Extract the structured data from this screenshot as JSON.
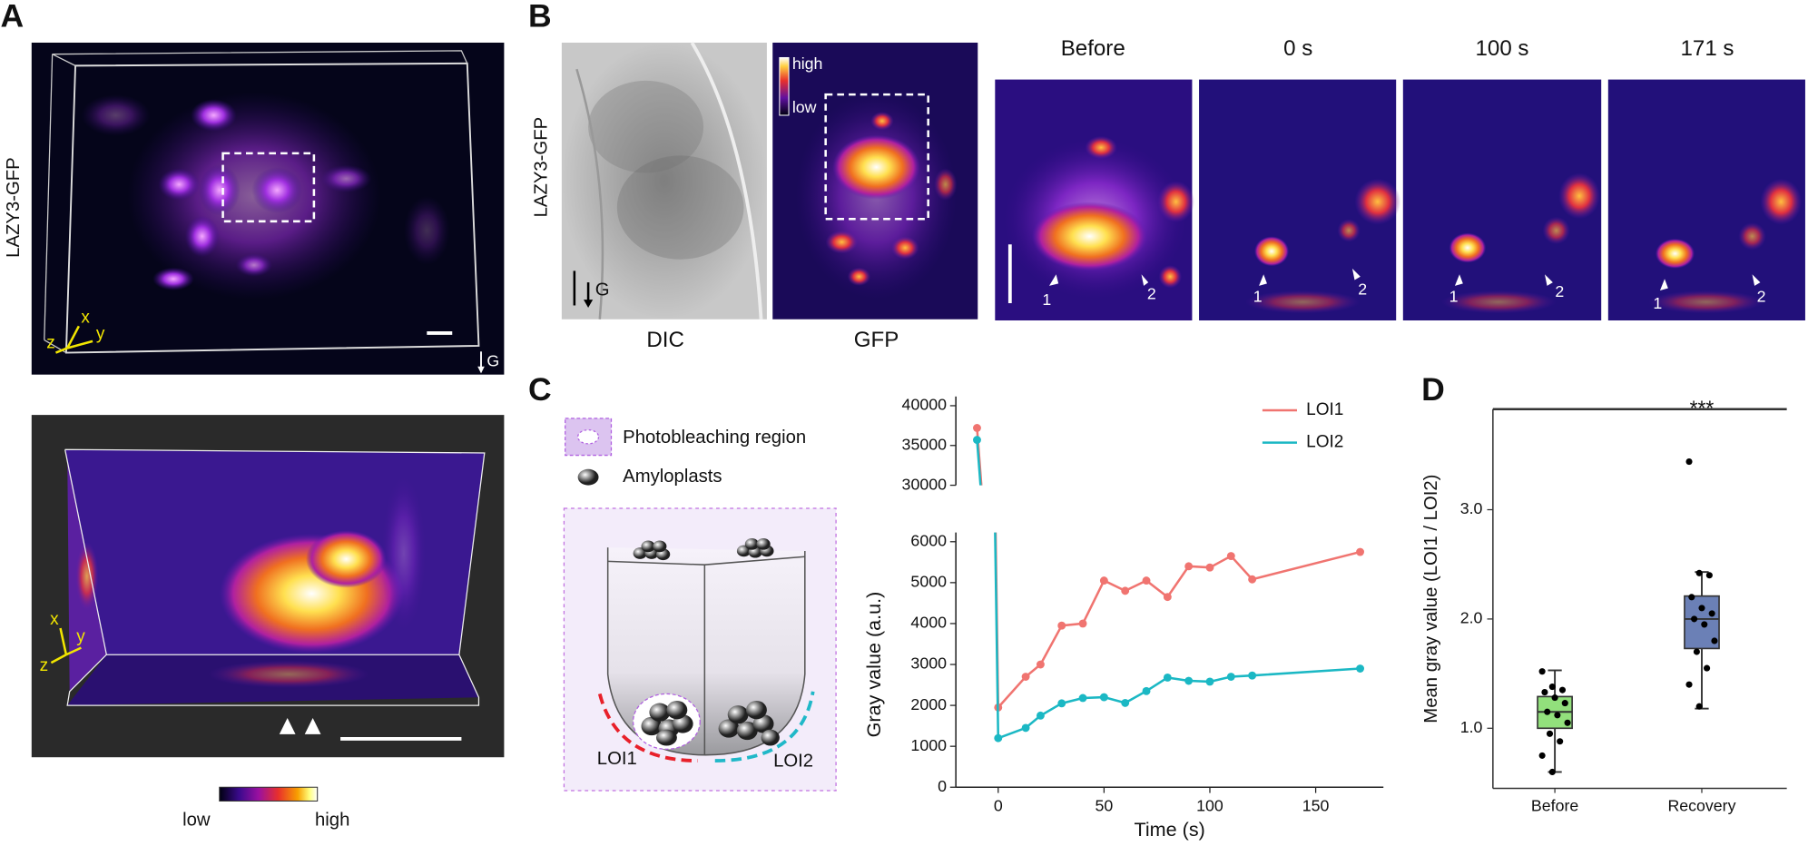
{
  "figure": {
    "panel_labels": [
      "A",
      "B",
      "C",
      "D"
    ],
    "a": {
      "ylabel": "LAZY3-GFP",
      "axes": [
        "x",
        "y",
        "z"
      ],
      "gravity": "G",
      "colorbar": [
        "low",
        "high"
      ]
    },
    "b": {
      "ylabel": "LAZY3-GFP",
      "gravity": "G",
      "images": [
        "DIC",
        "GFP"
      ],
      "colorbar": [
        "high",
        "low"
      ],
      "timepoints": [
        "Before",
        "0 s",
        "100 s",
        "171 s"
      ],
      "markers": [
        "1",
        "2"
      ]
    },
    "c": {
      "legend": [
        "Photobleaching region",
        "Amyloplasts"
      ],
      "regions": [
        "LOI1",
        "LOI2"
      ]
    }
  },
  "chart_data": [
    {
      "type": "line",
      "xlabel": "Time (s)",
      "ylabel": "Gray value (a.u.)",
      "x": [
        -10,
        0,
        13,
        20,
        30,
        40,
        50,
        60,
        70,
        80,
        90,
        100,
        110,
        120,
        171
      ],
      "series": [
        {
          "name": "LOI1",
          "color": "#f07470",
          "values": [
            37200,
            1950,
            2700,
            3000,
            3950,
            4000,
            5050,
            4800,
            5050,
            4650,
            5400,
            5370,
            5650,
            5080,
            5750
          ]
        },
        {
          "name": "LOI2",
          "color": "#1bb8c4",
          "values": [
            35700,
            1200,
            1450,
            1750,
            2050,
            2180,
            2200,
            2060,
            2350,
            2680,
            2600,
            2580,
            2700,
            2730,
            2900
          ]
        }
      ],
      "xlim": [
        -20,
        182
      ],
      "xticks": [
        0,
        50,
        100,
        150
      ],
      "ylim": [
        0,
        40000
      ],
      "ybreak": [
        6000,
        30000
      ],
      "yticks": [
        0,
        1000,
        2000,
        3000,
        4000,
        5000,
        6000,
        30000,
        35000,
        40000
      ],
      "legend": "upper right"
    },
    {
      "type": "box",
      "ylabel": "Mean gray value (LOI1 / LOI2)",
      "categories": [
        "Before",
        "Recovery"
      ],
      "boxes": [
        {
          "color": "#92e07c",
          "whislo": 0.6,
          "q1": 1.0,
          "med": 1.15,
          "q3": 1.29,
          "whishi": 1.53,
          "points": [
            1.52,
            1.38,
            1.35,
            1.33,
            1.28,
            1.23,
            1.15,
            1.12,
            1.05,
            0.95,
            0.88,
            0.75,
            0.6
          ]
        },
        {
          "color": "#6b80b6",
          "whislo": 1.18,
          "q1": 1.73,
          "med": 2.0,
          "q3": 2.21,
          "whishi": 2.43,
          "points": [
            3.44,
            2.42,
            2.4,
            2.2,
            2.1,
            2.05,
            2.0,
            1.95,
            1.8,
            1.7,
            1.55,
            1.4,
            1.2
          ],
          "significance": "***"
        }
      ],
      "ylim": [
        0.45,
        3.92
      ],
      "yticks": [
        {
          "value": 1,
          "label": "1.0"
        },
        {
          "value": 2,
          "label": "2.0"
        },
        {
          "value": 3,
          "label": "3.0"
        }
      ]
    }
  ]
}
